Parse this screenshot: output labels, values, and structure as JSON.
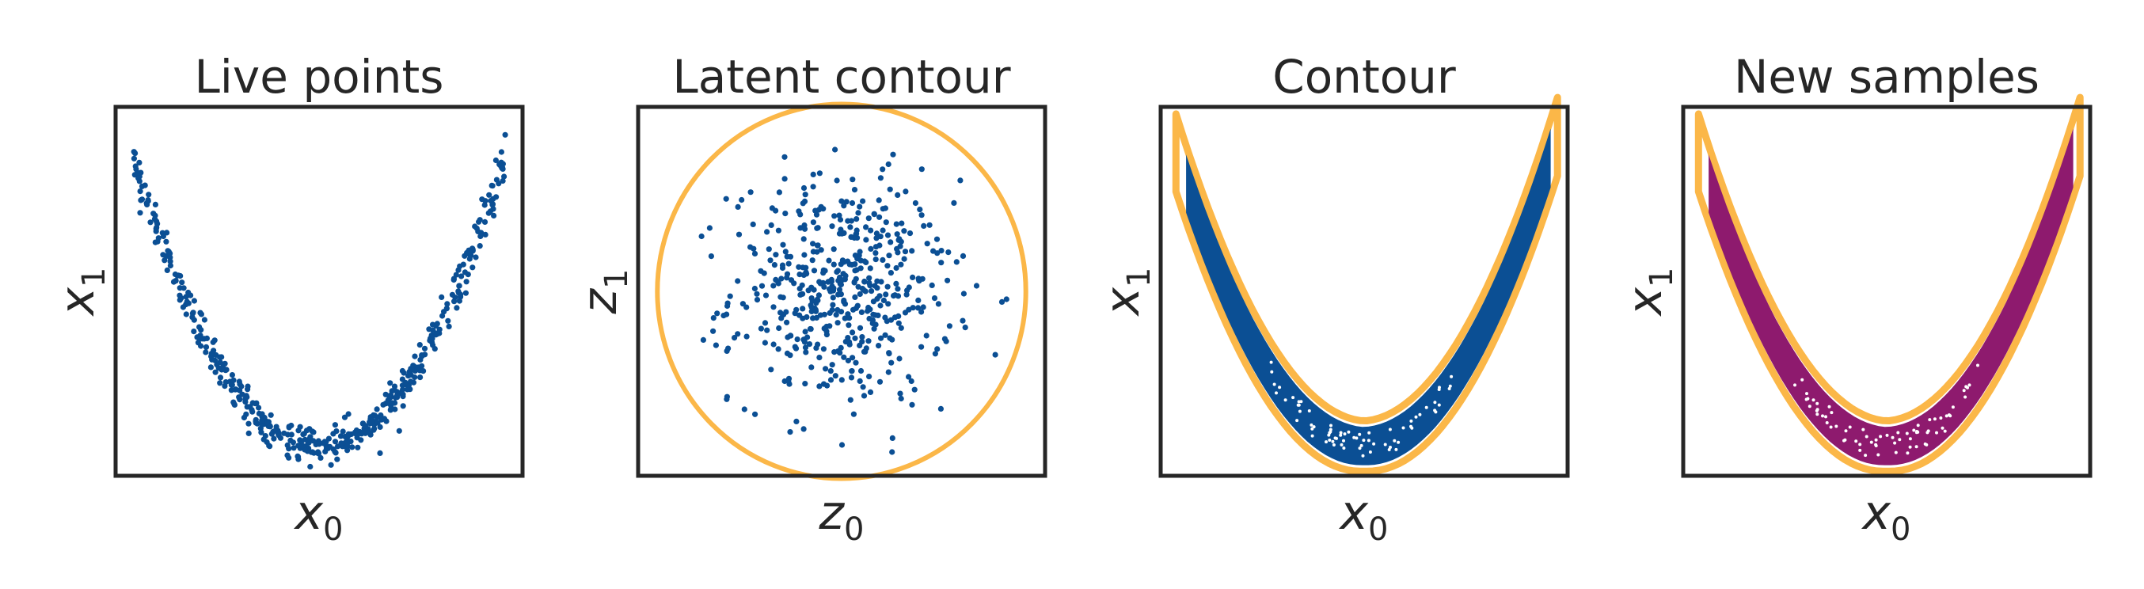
{
  "colors": {
    "live_points": "#0b4f94",
    "contour": "#fbb748",
    "new_samples": "#8e1a6e",
    "frame": "#262626"
  },
  "chart_data": [
    {
      "type": "scatter",
      "title": "Live points",
      "xlabel": "x0",
      "ylabel": "x1",
      "x_symbol": "x",
      "x_sub": "0",
      "y_symbol": "x",
      "y_sub": "1",
      "xlim": [
        -2.4,
        2.4
      ],
      "ylim": [
        -0.5,
        5.7
      ],
      "grid": false,
      "ticks": false,
      "series": [
        {
          "kind": "points",
          "color_key": "live_points",
          "count": 500,
          "curve": "x1 = x0^2 (noisy band)"
        }
      ]
    },
    {
      "type": "scatter",
      "title": "Latent contour",
      "xlabel": "z0",
      "ylabel": "z1",
      "x_symbol": "z",
      "x_sub": "0",
      "y_symbol": "z",
      "y_sub": "1",
      "xlim": [
        -3.7,
        3.7
      ],
      "ylim": [
        -3.3,
        3.3
      ],
      "contour_radius": 3.35,
      "grid": false,
      "ticks": false,
      "series": [
        {
          "kind": "points",
          "color_key": "live_points",
          "count": 500,
          "distribution": "standard normal"
        },
        {
          "kind": "contour",
          "color_key": "contour"
        }
      ]
    },
    {
      "type": "scatter",
      "title": "Contour",
      "xlabel": "x0",
      "ylabel": "x1",
      "x_symbol": "x",
      "x_sub": "0",
      "y_symbol": "x",
      "y_sub": "1",
      "xlim": [
        -2.4,
        2.4
      ],
      "ylim": [
        -0.5,
        5.7
      ],
      "grid": false,
      "ticks": false,
      "series": [
        {
          "kind": "band",
          "color_key": "live_points"
        },
        {
          "kind": "contour",
          "color_key": "contour"
        }
      ]
    },
    {
      "type": "scatter",
      "title": "New samples",
      "xlabel": "x0",
      "ylabel": "x1",
      "x_symbol": "x",
      "x_sub": "0",
      "y_symbol": "x",
      "y_sub": "1",
      "xlim": [
        -2.4,
        2.4
      ],
      "ylim": [
        -0.5,
        5.7
      ],
      "grid": false,
      "ticks": false,
      "series": [
        {
          "kind": "band",
          "color_key": "new_samples"
        },
        {
          "kind": "contour",
          "color_key": "contour"
        }
      ]
    }
  ]
}
